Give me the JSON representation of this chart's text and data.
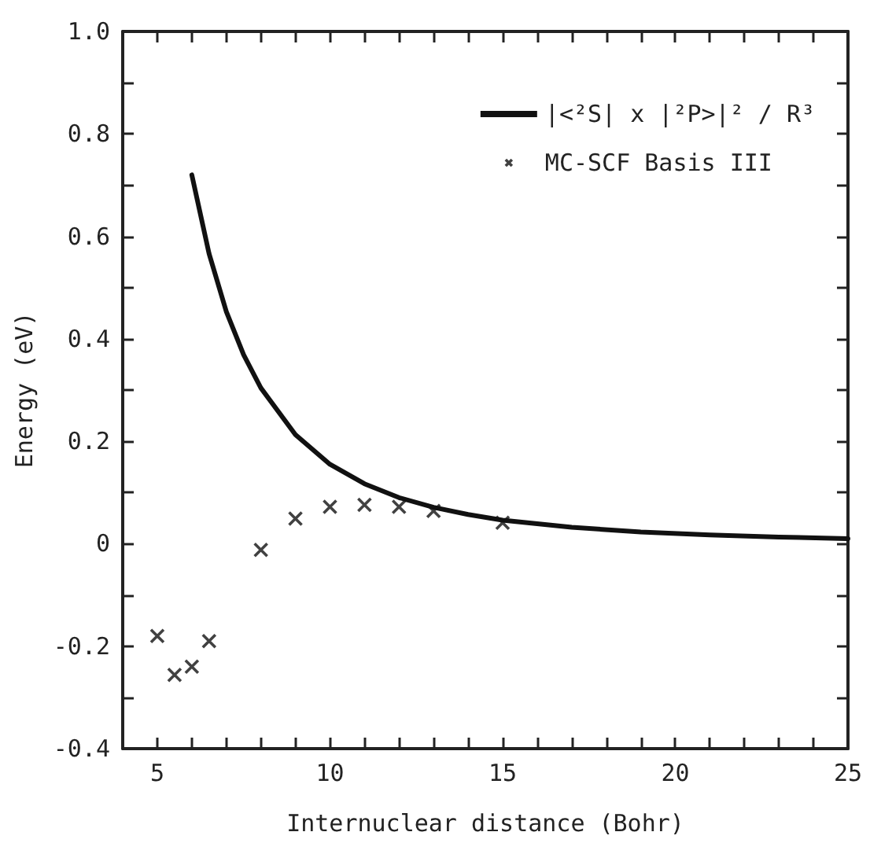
{
  "chart_data": {
    "type": "line",
    "xlabel": "Internuclear distance (Bohr)",
    "ylabel": "Energy (eV)",
    "xlim": [
      4,
      25
    ],
    "xticks": [
      5,
      {
        "value": 6,
        "label": null
      },
      {
        "value": 7,
        "label": null
      },
      {
        "value": 8,
        "label": null
      },
      {
        "value": 9,
        "label": null
      },
      10,
      {
        "value": 11,
        "label": null
      },
      {
        "value": 12,
        "label": null
      },
      {
        "value": 13,
        "label": null
      },
      {
        "value": 14,
        "label": null
      },
      15,
      {
        "value": 16,
        "label": null
      },
      {
        "value": 17,
        "label": null
      },
      {
        "value": 18,
        "label": null
      },
      {
        "value": 19,
        "label": null
      },
      20,
      {
        "value": 21,
        "label": null
      },
      {
        "value": 22,
        "label": null
      },
      {
        "value": 23,
        "label": null
      },
      {
        "value": 24,
        "label": null
      },
      25
    ],
    "ylim": [
      -0.4,
      1.0
    ],
    "yticks": [
      -0.4,
      {
        "value": -0.3,
        "label": null
      },
      -0.2,
      {
        "value": -0.1,
        "label": null
      },
      0,
      {
        "value": 0.1,
        "label": null
      },
      0.2,
      {
        "value": 0.3,
        "label": null
      },
      0.4,
      {
        "value": 0.5,
        "label": null
      },
      0.6,
      {
        "value": 0.7,
        "label": null
      },
      0.8,
      {
        "value": 0.9,
        "label": null
      },
      {
        "value": 1.0,
        "label": "1.0"
      }
    ],
    "grid": false,
    "legend": "top right",
    "series": [
      {
        "name": "|<²S| x |²P>|² / R³",
        "color": "#111111",
        "marker": "none",
        "line_style": "solid",
        "x": [
          6,
          6.5,
          7,
          7.5,
          8,
          9,
          10,
          11,
          12,
          13,
          14,
          15,
          17,
          19,
          21,
          23,
          25
        ],
        "values": [
          0.72,
          0.566,
          0.453,
          0.369,
          0.304,
          0.213,
          0.155,
          0.117,
          0.09,
          0.071,
          0.057,
          0.046,
          0.032,
          0.023,
          0.017,
          0.013,
          0.01
        ]
      },
      {
        "name": "MC-SCF Basis III",
        "type": "scatter",
        "color": "#111111",
        "marker": "cross",
        "x": [
          5,
          5.5,
          6,
          6.5,
          8,
          9,
          10,
          11,
          12,
          13,
          15
        ],
        "values": [
          -0.18,
          -0.256,
          -0.24,
          -0.19,
          -0.012,
          0.049,
          0.072,
          0.076,
          0.072,
          0.064,
          0.041
        ]
      }
    ]
  }
}
